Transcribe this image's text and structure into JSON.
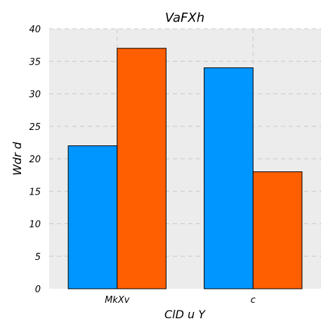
{
  "chart_data": {
    "type": "bar",
    "title": "VaFXh",
    "xlabel": "ClD u Y",
    "ylabel": "Wdr d",
    "categories": [
      "MkXv",
      "c"
    ],
    "series": [
      {
        "values": [
          22,
          34
        ],
        "color": "#0096ff"
      },
      {
        "values": [
          37,
          18
        ],
        "color": "#ff5f00"
      }
    ],
    "ylim": [
      0,
      40
    ],
    "yticks": [
      0,
      5,
      10,
      15,
      20,
      25,
      30,
      35,
      40
    ],
    "grid": true,
    "background": "#ececec"
  }
}
